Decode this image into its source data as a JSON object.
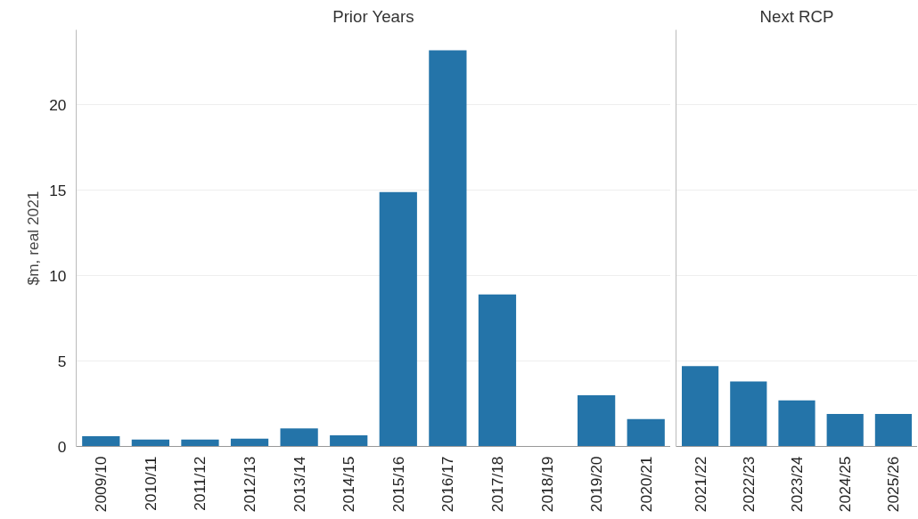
{
  "chart_data": [
    {
      "type": "bar",
      "title": "Prior Years",
      "ylabel": "$m, real 2021",
      "categories": [
        "2009/10",
        "2010/11",
        "2011/12",
        "2012/13",
        "2013/14",
        "2014/15",
        "2015/16",
        "2016/17",
        "2017/18",
        "2018/19",
        "2019/20",
        "2020/21"
      ],
      "values": [
        0.6,
        0.4,
        0.4,
        0.45,
        1.05,
        0.65,
        14.9,
        23.2,
        8.9,
        0,
        3.0,
        1.6
      ],
      "color": "#2474a9",
      "ylim": [
        0,
        24.4
      ],
      "yticks": [
        0,
        5,
        10,
        15,
        20
      ],
      "grid": "y"
    },
    {
      "type": "bar",
      "title": "Next RCP",
      "categories": [
        "2021/22",
        "2022/23",
        "2023/24",
        "2024/25",
        "2025/26"
      ],
      "values": [
        4.7,
        3.8,
        2.7,
        1.9,
        1.9
      ],
      "color": "#2474a9",
      "ylim": [
        0,
        24.4
      ],
      "yticks": [
        0,
        5,
        10,
        15,
        20
      ],
      "grid": "y",
      "tick_labels": "x"
    }
  ]
}
